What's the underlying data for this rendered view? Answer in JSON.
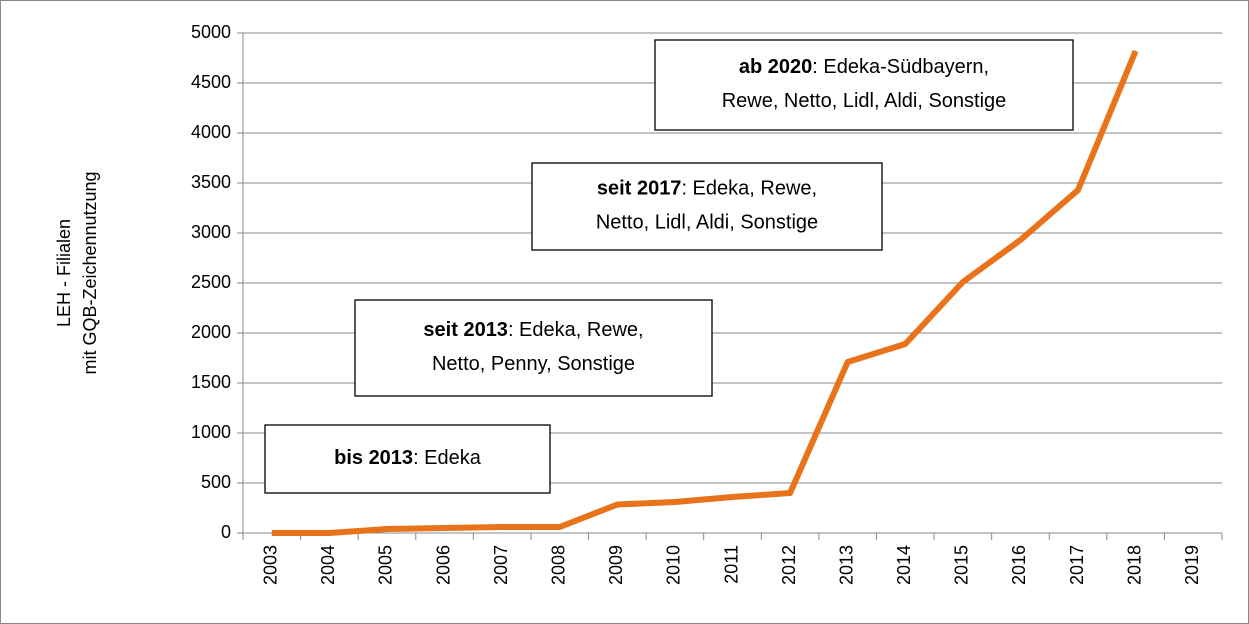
{
  "chart_data": {
    "type": "line",
    "y_label": [
      "LEH - Filialen",
      "mit GQB-Zeichennutzung"
    ],
    "categories": [
      "2003",
      "2004",
      "2005",
      "2006",
      "2007",
      "2008",
      "2009",
      "2010",
      "2011",
      "2012",
      "2013",
      "2014",
      "2015",
      "2016",
      "2017",
      "2018",
      "2019"
    ],
    "series": [
      {
        "name": "LEH - Filialen mit GQB-Zeichennutzung",
        "color": "#e8731a",
        "values": [
          0,
          0,
          40,
          50,
          60,
          60,
          285,
          310,
          360,
          400,
          1710,
          1890,
          2510,
          2930,
          3430,
          4820,
          null
        ]
      }
    ],
    "ylim": [
      0,
      5000
    ],
    "yticks": [
      0,
      500,
      1000,
      1500,
      2000,
      2500,
      3000,
      3500,
      4000,
      4500,
      5000
    ],
    "grid": true,
    "annotations": [
      {
        "bold": "bis 2013",
        "lines": [
          ": Edeka"
        ]
      },
      {
        "bold": "seit 2013",
        "lines": [
          ": Edeka, Rewe,",
          "Netto, Penny, Sonstige"
        ]
      },
      {
        "bold": "seit 2017",
        "lines": [
          ": Edeka, Rewe,",
          "Netto, Lidl, Aldi, Sonstige"
        ]
      },
      {
        "bold": "ab 2020",
        "lines": [
          ": Edeka-Südbayern,",
          "Rewe, Netto, Lidl, Aldi, Sonstige"
        ]
      }
    ]
  }
}
